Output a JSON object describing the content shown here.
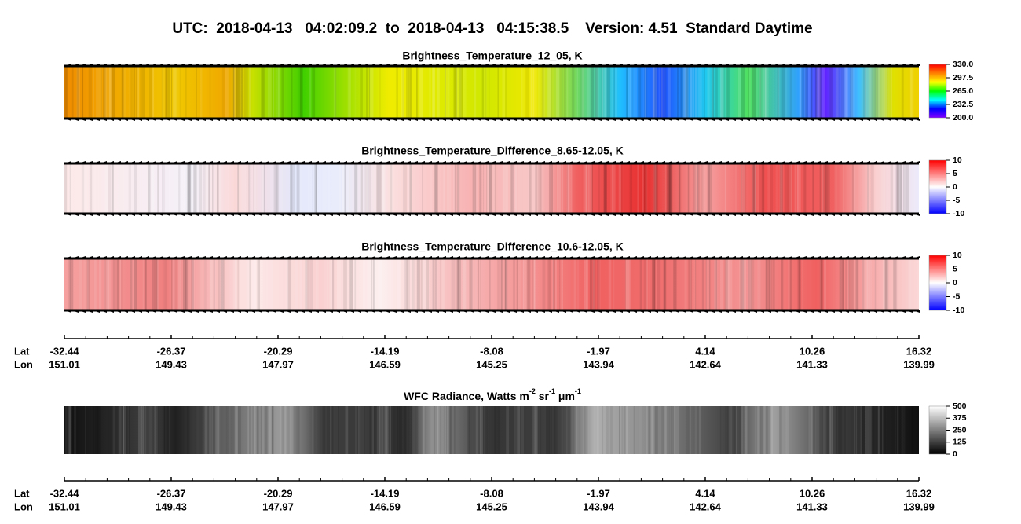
{
  "title": "UTC:  2018-04-13   04:02:09.2  to  2018-04-13   04:15:38.5    Version: 4.51  Standard Daytime",
  "chart_data": [
    {
      "type": "image",
      "title": "Brightness_Temperature_12_05, K",
      "colorbar": {
        "lim": [
          200,
          330
        ],
        "ticks": [
          {
            "value": 330,
            "label": "330.0"
          },
          297.5,
          {
            "value": 265,
            "label": "265.0"
          },
          232.5,
          {
            "value": 200,
            "label": "200.0"
          }
        ],
        "colors": [
          "#8000ff",
          "#0000ff",
          "#00ffff",
          "#00ff00",
          "#ffff00",
          "#ff8000",
          "#ff0000"
        ]
      }
    },
    {
      "type": "image",
      "title": "Brightness_Temperature_Difference_8.65-12.05, K",
      "colorbar": {
        "lim": [
          -10,
          10
        ],
        "ticks": [
          10,
          5,
          0,
          -5,
          -10
        ],
        "colors": [
          "#0000ff",
          "#ffffff",
          "#ff0000"
        ]
      }
    },
    {
      "type": "image",
      "title": "Brightness_Temperature_Difference_10.6-12.05, K",
      "colorbar": {
        "lim": [
          -10,
          10
        ],
        "ticks": [
          10,
          5,
          0,
          -5,
          -10
        ],
        "colors": [
          "#0000ff",
          "#ffffff",
          "#ff0000"
        ]
      }
    },
    {
      "type": "image",
      "title_parts": [
        "WFC Radiance, Watts m",
        "-2",
        " sr",
        "-1",
        " μm",
        "-1"
      ],
      "colorbar": {
        "lim": [
          0,
          500
        ],
        "ticks": [
          500,
          375,
          250,
          125,
          0
        ],
        "colors": [
          "#000000",
          "#ffffff"
        ]
      }
    }
  ],
  "axes": [
    {
      "lat_label": "Lat",
      "lon_label": "Lon",
      "lat": [
        -32.44,
        -26.37,
        -20.29,
        -14.19,
        -8.08,
        -1.97,
        4.14,
        10.26,
        16.32
      ],
      "lon": [
        151.01,
        149.43,
        147.97,
        146.59,
        145.25,
        143.94,
        142.64,
        141.33,
        139.99
      ]
    },
    {
      "lat_label": "Lat",
      "lon_label": "Lon",
      "lat": [
        -32.44,
        -26.37,
        -20.29,
        -14.19,
        -8.08,
        -1.97,
        4.14,
        10.26,
        16.32
      ],
      "lon": [
        151.01,
        149.43,
        147.97,
        146.59,
        145.25,
        143.94,
        142.64,
        141.33,
        139.99
      ]
    }
  ]
}
